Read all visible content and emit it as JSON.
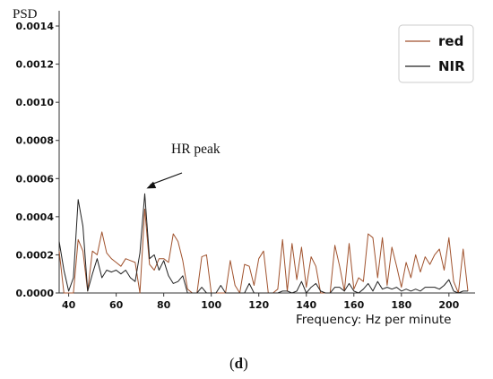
{
  "chart_data": {
    "type": "line",
    "ylabel": "PSD",
    "xlabel": "Frequency: Hz per minute",
    "xlim": [
      36,
      211
    ],
    "ylim": [
      0,
      0.00148
    ],
    "x_ticks": [
      {
        "value": 40,
        "label": "40"
      },
      {
        "value": 60,
        "label": "60"
      },
      {
        "value": 80,
        "label": "80"
      },
      {
        "value": 100,
        "label": "100"
      },
      {
        "value": 120,
        "label": "120"
      },
      {
        "value": 140,
        "label": "140"
      },
      {
        "value": 160,
        "label": "160"
      },
      {
        "value": 180,
        "label": "180"
      },
      {
        "value": 200,
        "label": "200"
      }
    ],
    "y_ticks": [
      {
        "value": 0,
        "label": "0.0000"
      },
      {
        "value": 0.0002,
        "label": "0.0002"
      },
      {
        "value": 0.0004,
        "label": "0.0004"
      },
      {
        "value": 0.0006,
        "label": "0.0006"
      },
      {
        "value": 0.0008,
        "label": "0.0008"
      },
      {
        "value": 0.001,
        "label": "0.0010"
      },
      {
        "value": 0.0012,
        "label": "0.0012"
      },
      {
        "value": 0.0014,
        "label": "0.0014"
      }
    ],
    "grid": false,
    "legend": "top-right",
    "series": [
      {
        "name": "red",
        "color": "#a0522d",
        "points": [
          [
            36,
            0.00022
          ],
          [
            38,
            0
          ],
          [
            40,
            0
          ],
          [
            42,
            0
          ],
          [
            44,
            0.00028
          ],
          [
            46,
            0.00022
          ],
          [
            48,
            1e-05
          ],
          [
            50,
            0.00022
          ],
          [
            52,
            0.0002
          ],
          [
            54,
            0.00032
          ],
          [
            56,
            0.00021
          ],
          [
            58,
            0.00018
          ],
          [
            60,
            0.00016
          ],
          [
            62,
            0.00014
          ],
          [
            64,
            0.00018
          ],
          [
            66,
            0.00017
          ],
          [
            68,
            0.00016
          ],
          [
            70,
            0
          ],
          [
            72,
            0.00044
          ],
          [
            74,
            0.00015
          ],
          [
            76,
            0.00012
          ],
          [
            78,
            0.00018
          ],
          [
            80,
            0.00018
          ],
          [
            82,
            0.00016
          ],
          [
            84,
            0.00031
          ],
          [
            86,
            0.00027
          ],
          [
            88,
            0.00017
          ],
          [
            90,
            2e-05
          ],
          [
            92,
            0
          ],
          [
            94,
            0
          ],
          [
            96,
            0.00019
          ],
          [
            98,
            0.0002
          ],
          [
            100,
            0
          ],
          [
            102,
            0
          ],
          [
            104,
            0
          ],
          [
            106,
            0
          ],
          [
            108,
            0.00017
          ],
          [
            110,
            4e-05
          ],
          [
            112,
            0
          ],
          [
            114,
            0.00015
          ],
          [
            116,
            0.00014
          ],
          [
            118,
            4e-05
          ],
          [
            120,
            0.00018
          ],
          [
            122,
            0.00022
          ],
          [
            124,
            0
          ],
          [
            126,
            0
          ],
          [
            128,
            2e-05
          ],
          [
            130,
            0.00028
          ],
          [
            132,
            1e-05
          ],
          [
            134,
            0.00026
          ],
          [
            136,
            7e-05
          ],
          [
            138,
            0.00024
          ],
          [
            140,
            3e-05
          ],
          [
            142,
            0.00019
          ],
          [
            144,
            0.00014
          ],
          [
            146,
            0
          ],
          [
            148,
            0
          ],
          [
            150,
            0
          ],
          [
            152,
            0.00025
          ],
          [
            154,
            0.00014
          ],
          [
            156,
            1e-05
          ],
          [
            158,
            0.00026
          ],
          [
            160,
            2e-05
          ],
          [
            162,
            8e-05
          ],
          [
            164,
            6e-05
          ],
          [
            166,
            0.00031
          ],
          [
            168,
            0.00029
          ],
          [
            170,
            8e-05
          ],
          [
            172,
            0.00029
          ],
          [
            174,
            4e-05
          ],
          [
            176,
            0.00024
          ],
          [
            178,
            0.00014
          ],
          [
            180,
            3e-05
          ],
          [
            182,
            0.00016
          ],
          [
            184,
            8e-05
          ],
          [
            186,
            0.0002
          ],
          [
            188,
            0.00011
          ],
          [
            190,
            0.00019
          ],
          [
            192,
            0.00015
          ],
          [
            194,
            0.0002
          ],
          [
            196,
            0.00023
          ],
          [
            198,
            0.00012
          ],
          [
            200,
            0.00029
          ],
          [
            202,
            6e-05
          ],
          [
            204,
            0
          ],
          [
            206,
            0.00023
          ],
          [
            208,
            1e-05
          ]
        ]
      },
      {
        "name": "NIR",
        "color": "#222222",
        "points": [
          [
            36,
            0.00027
          ],
          [
            38,
            0.00012
          ],
          [
            40,
            1e-05
          ],
          [
            42,
            8e-05
          ],
          [
            44,
            0.00049
          ],
          [
            46,
            0.00035
          ],
          [
            48,
            1e-05
          ],
          [
            50,
            0.0001
          ],
          [
            52,
            0.00018
          ],
          [
            54,
            8e-05
          ],
          [
            56,
            0.00012
          ],
          [
            58,
            0.00011
          ],
          [
            60,
            0.00012
          ],
          [
            62,
            0.0001
          ],
          [
            64,
            0.00012
          ],
          [
            66,
            8e-05
          ],
          [
            68,
            6e-05
          ],
          [
            70,
            0.00021
          ],
          [
            72,
            0.00052
          ],
          [
            74,
            0.00018
          ],
          [
            76,
            0.0002
          ],
          [
            78,
            0.00012
          ],
          [
            80,
            0.00017
          ],
          [
            82,
            9e-05
          ],
          [
            84,
            5e-05
          ],
          [
            86,
            6e-05
          ],
          [
            88,
            9e-05
          ],
          [
            90,
            0
          ],
          [
            92,
            0
          ],
          [
            94,
            0
          ],
          [
            96,
            3e-05
          ],
          [
            98,
            0
          ],
          [
            100,
            0
          ],
          [
            102,
            0
          ],
          [
            104,
            4e-05
          ],
          [
            106,
            0
          ],
          [
            108,
            0
          ],
          [
            110,
            0
          ],
          [
            112,
            0
          ],
          [
            114,
            0
          ],
          [
            116,
            5e-05
          ],
          [
            118,
            0
          ],
          [
            120,
            0
          ],
          [
            122,
            0
          ],
          [
            124,
            0
          ],
          [
            126,
            0
          ],
          [
            128,
            0
          ],
          [
            130,
            1e-05
          ],
          [
            132,
            1e-05
          ],
          [
            134,
            0
          ],
          [
            136,
            1e-05
          ],
          [
            138,
            6e-05
          ],
          [
            140,
            0
          ],
          [
            142,
            3e-05
          ],
          [
            144,
            5e-05
          ],
          [
            146,
            1e-05
          ],
          [
            148,
            0
          ],
          [
            150,
            0
          ],
          [
            152,
            3e-05
          ],
          [
            154,
            3e-05
          ],
          [
            156,
            1e-05
          ],
          [
            158,
            5e-05
          ],
          [
            160,
            1e-05
          ],
          [
            162,
            0
          ],
          [
            164,
            2e-05
          ],
          [
            166,
            5e-05
          ],
          [
            168,
            1e-05
          ],
          [
            170,
            6e-05
          ],
          [
            172,
            2e-05
          ],
          [
            174,
            3e-05
          ],
          [
            176,
            2e-05
          ],
          [
            178,
            3e-05
          ],
          [
            180,
            1e-05
          ],
          [
            182,
            2e-05
          ],
          [
            184,
            1e-05
          ],
          [
            186,
            2e-05
          ],
          [
            188,
            1e-05
          ],
          [
            190,
            3e-05
          ],
          [
            192,
            3e-05
          ],
          [
            194,
            3e-05
          ],
          [
            196,
            2e-05
          ],
          [
            198,
            4e-05
          ],
          [
            200,
            7e-05
          ],
          [
            202,
            1e-05
          ],
          [
            204,
            0
          ],
          [
            206,
            1e-05
          ],
          [
            208,
            1e-05
          ]
        ]
      }
    ],
    "annotations": [
      {
        "text": "HR peak",
        "arrow_to": [
          72,
          0.00052
        ]
      }
    ]
  },
  "caption": "(d)"
}
